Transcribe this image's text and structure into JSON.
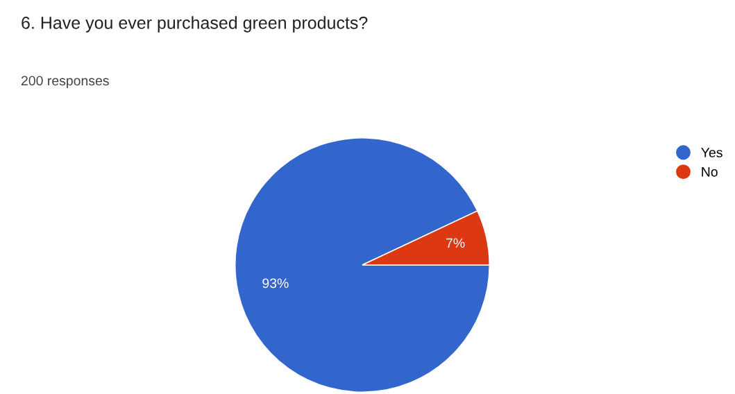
{
  "chart_data": {
    "type": "pie",
    "title": "6. Have you ever purchased green products?",
    "subtitle": "200 responses",
    "categories": [
      "Yes",
      "No"
    ],
    "values": [
      93,
      7
    ],
    "colors": [
      "#3366cc",
      "#dc3912"
    ],
    "value_labels": [
      "93%",
      "7%"
    ],
    "legend": "top right"
  }
}
